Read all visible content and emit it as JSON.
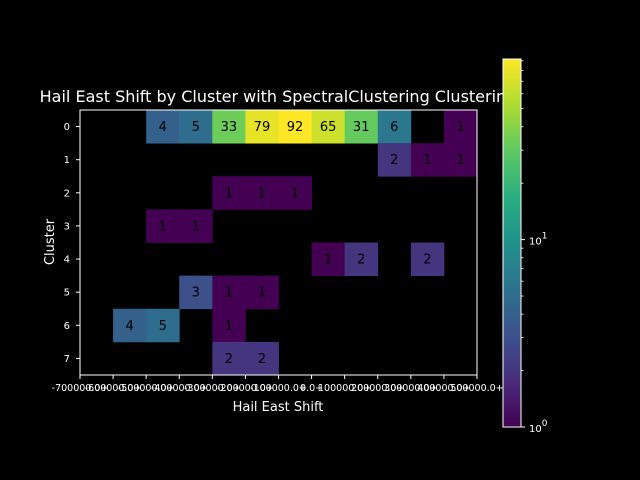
{
  "chart_data": {
    "type": "heatmap",
    "title": "Hail East Shift by Cluster with SpectralClustering Clustering",
    "xlabel": "Hail East Shift",
    "ylabel": "Cluster",
    "x_tick_labels": [
      "-700000.0",
      "-600000.0",
      "-500000.0",
      "-400000.0",
      "-300000.0",
      "-200000.0",
      "-100000.0",
      "0.0",
      "100000.0",
      "200000.0",
      "300000.0",
      "400000.0",
      "500000.0"
    ],
    "x_tick_labels_display": [
      "-700000.0+",
      "-600000.0+",
      "-500000.0+",
      "-400000.0+",
      "-300000.0+",
      "-200000.0+",
      "-100000.0+",
      "0.0+",
      "100000.0+",
      "200000.0+",
      "300000.0+",
      "400000.0+",
      "500000.0+"
    ],
    "rows": [
      "0",
      "1",
      "2",
      "3",
      "4",
      "5",
      "6",
      "7"
    ],
    "n_cols": 12,
    "counts": [
      [
        null,
        null,
        4,
        5,
        33,
        79,
        92,
        65,
        31,
        6,
        null,
        1
      ],
      [
        null,
        null,
        null,
        null,
        null,
        null,
        null,
        null,
        null,
        2,
        1,
        1
      ],
      [
        null,
        null,
        null,
        null,
        1,
        1,
        1,
        null,
        null,
        null,
        null,
        null
      ],
      [
        null,
        null,
        1,
        1,
        null,
        null,
        null,
        null,
        null,
        null,
        null,
        null
      ],
      [
        null,
        null,
        null,
        null,
        null,
        null,
        null,
        1,
        2,
        null,
        2,
        null
      ],
      [
        null,
        null,
        null,
        3,
        1,
        1,
        null,
        null,
        null,
        null,
        null,
        null
      ],
      [
        null,
        4,
        5,
        null,
        1,
        null,
        null,
        null,
        null,
        null,
        null,
        null
      ],
      [
        null,
        null,
        null,
        null,
        2,
        2,
        null,
        null,
        null,
        null,
        null,
        null
      ]
    ],
    "colorbar": {
      "scale": "log",
      "min": 1,
      "max": 92,
      "colormap": "viridis",
      "tick_labels": [
        {
          "value": 1,
          "base": "10",
          "exp": "0"
        },
        {
          "value": 10,
          "base": "10",
          "exp": "1"
        }
      ]
    },
    "grid": false,
    "colors": {
      "background": "#000000",
      "text": "#ffffff"
    }
  }
}
